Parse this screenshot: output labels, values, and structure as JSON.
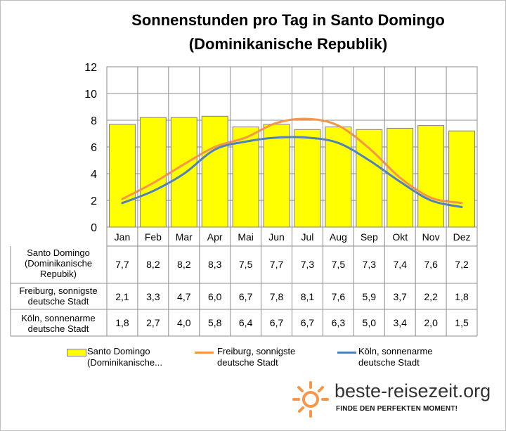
{
  "chart_data": {
    "type": "bar",
    "title_line1": "Sonnenstunden pro Tag in Santo Domingo",
    "title_line2": "(Dominikanische Republik)",
    "categories": [
      "Jan",
      "Feb",
      "Mar",
      "Apr",
      "Mai",
      "Jun",
      "Jul",
      "Aug",
      "Sep",
      "Okt",
      "Nov",
      "Dez"
    ],
    "ylim": [
      0,
      12
    ],
    "yticks": [
      "0",
      "2",
      "4",
      "6",
      "8",
      "10",
      "12"
    ],
    "grid": true,
    "series": [
      {
        "name": "Santo Domingo (Dominikanische Repubik)",
        "table_label": [
          "Santo Domingo",
          "(Dominikanische",
          "Repubik)"
        ],
        "legend_label": [
          "Santo Domingo",
          "(Dominikanische..."
        ],
        "kind": "bar",
        "color": "#ffff00",
        "values": [
          7.7,
          8.2,
          8.2,
          8.3,
          7.5,
          7.7,
          7.3,
          7.5,
          7.3,
          7.4,
          7.6,
          7.2
        ],
        "labels": [
          "7,7",
          "8,2",
          "8,2",
          "8,3",
          "7,5",
          "7,7",
          "7,3",
          "7,5",
          "7,3",
          "7,4",
          "7,6",
          "7,2"
        ]
      },
      {
        "name": "Freiburg, sonnigste deutsche Stadt",
        "table_label": [
          "Freiburg, sonnigste",
          "deutsche Stadt"
        ],
        "legend_label": [
          "Freiburg, sonnigste",
          "deutsche Stadt"
        ],
        "kind": "line",
        "color": "#f79646",
        "values": [
          2.1,
          3.3,
          4.7,
          6.0,
          6.7,
          7.8,
          8.1,
          7.6,
          5.9,
          3.7,
          2.2,
          1.8
        ],
        "labels": [
          "2,1",
          "3,3",
          "4,7",
          "6,0",
          "6,7",
          "7,8",
          "8,1",
          "7,6",
          "5,9",
          "3,7",
          "2,2",
          "1,8"
        ]
      },
      {
        "name": "Köln, sonnenarme deutsche Stadt",
        "table_label": [
          "Köln, sonnenarme",
          "deutsche Stadt"
        ],
        "legend_label": [
          "Köln, sonnenarme",
          "deutsche Stadt"
        ],
        "kind": "line",
        "color": "#4f81bd",
        "values": [
          1.8,
          2.7,
          4.0,
          5.8,
          6.4,
          6.7,
          6.7,
          6.3,
          5.0,
          3.4,
          2.0,
          1.5
        ],
        "labels": [
          "1,8",
          "2,7",
          "4,0",
          "5,8",
          "6,4",
          "6,7",
          "6,7",
          "6,3",
          "5,0",
          "3,4",
          "2,0",
          "1,5"
        ]
      }
    ]
  },
  "logo": {
    "text": "beste-reisezeit.org",
    "tagline": "FINDE DEN PERFEKTEN MOMENT!",
    "icon": "sun-icon",
    "accent": "#f79646"
  }
}
